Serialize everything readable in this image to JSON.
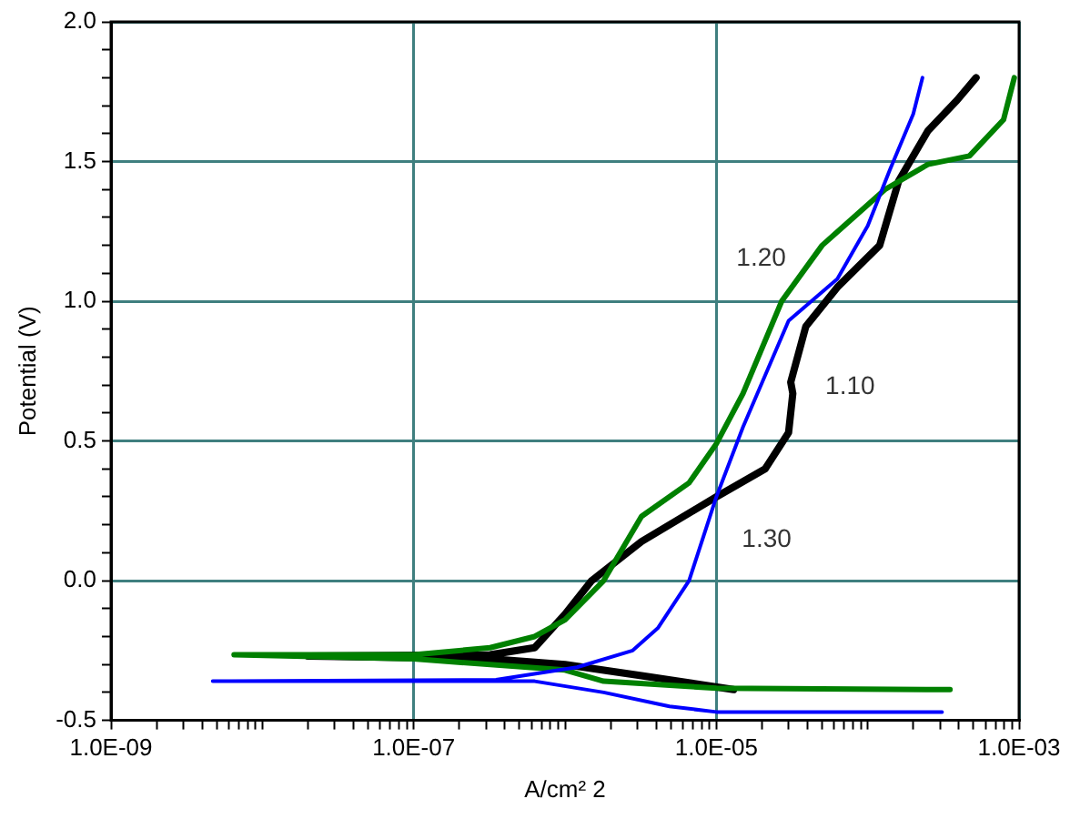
{
  "chart_data": {
    "type": "line",
    "xlabel": "A/cm² 2",
    "ylabel": "Potential (V)",
    "log": "x",
    "grid": true,
    "marker": "none",
    "line_style": "solid",
    "xlim": [
      1e-09,
      0.001
    ],
    "ylim": [
      -0.5,
      2.0
    ],
    "xticks": [
      {
        "value": 1e-09,
        "label": "1.0E-09"
      },
      {
        "value": 2e-09,
        "label": null
      },
      {
        "value": 3e-09,
        "label": null
      },
      {
        "value": 4e-09,
        "label": null
      },
      {
        "value": 5e-09,
        "label": null
      },
      {
        "value": 6e-09,
        "label": null
      },
      {
        "value": 7e-09,
        "label": null
      },
      {
        "value": 8e-09,
        "label": null
      },
      {
        "value": 9e-09,
        "label": null
      },
      {
        "value": 1e-08,
        "label": null
      },
      {
        "value": 2e-08,
        "label": null
      },
      {
        "value": 3e-08,
        "label": null
      },
      {
        "value": 4e-08,
        "label": null
      },
      {
        "value": 5e-08,
        "label": null
      },
      {
        "value": 6e-08,
        "label": null
      },
      {
        "value": 7e-08,
        "label": null
      },
      {
        "value": 8e-08,
        "label": null
      },
      {
        "value": 9e-08,
        "label": null
      },
      {
        "value": 1e-07,
        "label": "1.0E-07"
      },
      {
        "value": 2e-07,
        "label": null
      },
      {
        "value": 3e-07,
        "label": null
      },
      {
        "value": 4e-07,
        "label": null
      },
      {
        "value": 5e-07,
        "label": null
      },
      {
        "value": 6e-07,
        "label": null
      },
      {
        "value": 7e-07,
        "label": null
      },
      {
        "value": 8e-07,
        "label": null
      },
      {
        "value": 9e-07,
        "label": null
      },
      {
        "value": 1e-06,
        "label": null
      },
      {
        "value": 2e-06,
        "label": null
      },
      {
        "value": 3e-06,
        "label": null
      },
      {
        "value": 4e-06,
        "label": null
      },
      {
        "value": 5e-06,
        "label": null
      },
      {
        "value": 6e-06,
        "label": null
      },
      {
        "value": 7e-06,
        "label": null
      },
      {
        "value": 8e-06,
        "label": null
      },
      {
        "value": 9e-06,
        "label": null
      },
      {
        "value": 1e-05,
        "label": "1.0E-05"
      },
      {
        "value": 2e-05,
        "label": null
      },
      {
        "value": 3e-05,
        "label": null
      },
      {
        "value": 4e-05,
        "label": null
      },
      {
        "value": 5e-05,
        "label": null
      },
      {
        "value": 6e-05,
        "label": null
      },
      {
        "value": 7e-05,
        "label": null
      },
      {
        "value": 8e-05,
        "label": null
      },
      {
        "value": 9e-05,
        "label": null
      },
      {
        "value": 0.0001,
        "label": null
      },
      {
        "value": 0.0002,
        "label": null
      },
      {
        "value": 0.0003,
        "label": null
      },
      {
        "value": 0.0004,
        "label": null
      },
      {
        "value": 0.0005,
        "label": null
      },
      {
        "value": 0.0006,
        "label": null
      },
      {
        "value": 0.0007,
        "label": null
      },
      {
        "value": 0.0008,
        "label": null
      },
      {
        "value": 0.0009,
        "label": null
      },
      {
        "value": 0.001,
        "label": "1.0E-03"
      }
    ],
    "yticks": [
      {
        "value": -0.5,
        "label": "-0.5"
      },
      {
        "value": -0.4,
        "label": null
      },
      {
        "value": -0.3,
        "label": null
      },
      {
        "value": -0.2,
        "label": null
      },
      {
        "value": -0.1,
        "label": null
      },
      {
        "value": 0,
        "label": "0.0"
      },
      {
        "value": 0.1,
        "label": null
      },
      {
        "value": 0.2,
        "label": null
      },
      {
        "value": 0.3,
        "label": null
      },
      {
        "value": 0.4,
        "label": null
      },
      {
        "value": 0.5,
        "label": "0.5"
      },
      {
        "value": 0.6,
        "label": null
      },
      {
        "value": 0.7,
        "label": null
      },
      {
        "value": 0.8,
        "label": null
      },
      {
        "value": 0.9,
        "label": null
      },
      {
        "value": 1.0,
        "label": "1.0"
      },
      {
        "value": 1.1,
        "label": null
      },
      {
        "value": 1.2,
        "label": null
      },
      {
        "value": 1.3,
        "label": null
      },
      {
        "value": 1.4,
        "label": null
      },
      {
        "value": 1.5,
        "label": "1.5"
      },
      {
        "value": 1.6,
        "label": null
      },
      {
        "value": 1.7,
        "label": null
      },
      {
        "value": 1.8,
        "label": null
      },
      {
        "value": 1.9,
        "label": null
      },
      {
        "value": 2.0,
        "label": "2.0"
      }
    ],
    "series": [
      {
        "color": "#000000",
        "x": [
          1.3e-05,
          3.2e-06,
          1e-06,
          3.2e-07,
          2e-08,
          3.2e-07,
          6.3e-07,
          1e-06,
          1.5e-06,
          3.2e-06,
          1e-05,
          2.1e-05,
          3e-05,
          3.2e-05,
          3.1e-05,
          3.9e-05,
          6.3e-05,
          0.00012,
          0.00016,
          0.00025,
          0.00039,
          0.00052
        ],
        "values": [
          -0.39,
          -0.34,
          -0.3,
          -0.28,
          -0.27,
          -0.265,
          -0.24,
          -0.12,
          0.0,
          0.14,
          0.3,
          0.4,
          0.53,
          0.67,
          0.71,
          0.91,
          1.05,
          1.2,
          1.43,
          1.61,
          1.72,
          1.8
        ]
      },
      {
        "color": "#008000",
        "x": [
          0.00035,
          1e-05,
          1.8e-06,
          1e-06,
          1e-07,
          6.5e-09,
          1e-07,
          3.2e-07,
          6.3e-07,
          1e-06,
          1.8e-06,
          3.2e-06,
          6.6e-06,
          1e-05,
          1.5e-05,
          2.7e-05,
          5e-05,
          0.00013,
          0.00025,
          0.00047,
          0.00079,
          0.00093
        ],
        "values": [
          -0.39,
          -0.385,
          -0.36,
          -0.32,
          -0.28,
          -0.265,
          -0.265,
          -0.24,
          -0.2,
          -0.14,
          0.0,
          0.23,
          0.35,
          0.49,
          0.67,
          1.0,
          1.2,
          1.4,
          1.49,
          1.52,
          1.65,
          1.8
        ]
      },
      {
        "color": "#0000ff",
        "x": [
          0.00031,
          1e-05,
          4.9e-06,
          1.8e-06,
          6.3e-07,
          3.5e-07,
          4.7e-09,
          3.5e-07,
          1.2e-06,
          2.8e-06,
          4.1e-06,
          6.6e-06,
          1e-05,
          1.5e-05,
          3e-05,
          6.3e-05,
          0.0001,
          0.00014,
          0.0002,
          0.00023
        ],
        "values": [
          -0.47,
          -0.47,
          -0.45,
          -0.4,
          -0.36,
          -0.36,
          -0.36,
          -0.355,
          -0.31,
          -0.25,
          -0.17,
          0.0,
          0.3,
          0.55,
          0.93,
          1.08,
          1.27,
          1.47,
          1.67,
          1.8
        ]
      }
    ],
    "annotations": [
      "1.20",
      "1.10",
      "1.30"
    ]
  }
}
